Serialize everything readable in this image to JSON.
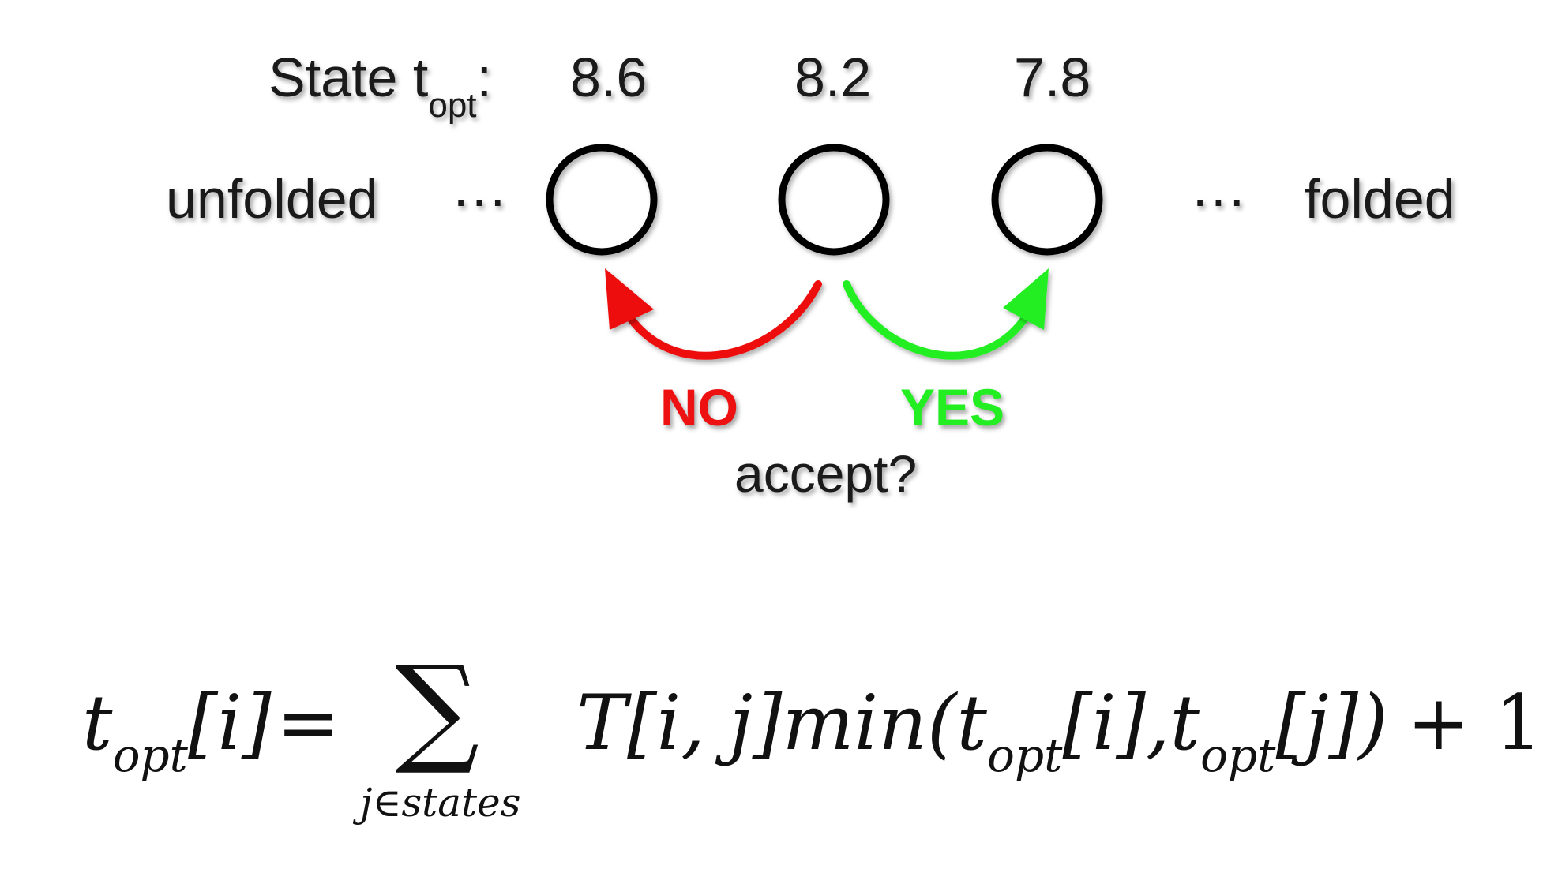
{
  "header": {
    "state_label": "State t",
    "state_sub": "opt",
    "state_colon": ":"
  },
  "states": [
    {
      "value": "8.6"
    },
    {
      "value": "8.2"
    },
    {
      "value": "7.8"
    }
  ],
  "ends": {
    "left": "unfolded",
    "right": "folded",
    "ellipsis": "···"
  },
  "decision": {
    "no": "NO",
    "yes": "YES",
    "question": "accept?",
    "no_color": "#ee1111",
    "yes_color": "#22ee22"
  },
  "equation": {
    "lhs_t": "t",
    "lhs_sub": "opt",
    "lhs_idx": "[i]",
    "equals": "=",
    "sum_symbol": "∑",
    "sum_index": "j∈states",
    "term_T": "T[i, j]",
    "term_min": "min(",
    "t1": "t",
    "t1_sub": "opt",
    "t1_idx": "[i],",
    "t2": "t",
    "t2_sub": "opt",
    "t2_idx": "[j])",
    "plus_one": "+ 1"
  }
}
